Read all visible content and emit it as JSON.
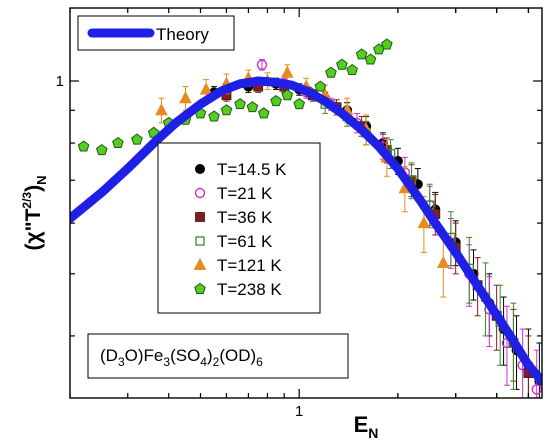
{
  "chart_data": {
    "type": "scatter",
    "x_scale": "log",
    "y_scale": "log",
    "xlim": [
      0.2,
      5.5
    ],
    "ylim": [
      0.32,
      1.3
    ],
    "x_ticks": [
      {
        "value": 1,
        "label": "1"
      }
    ],
    "y_ticks": [
      {
        "value": 1,
        "label": "1"
      }
    ],
    "xlabel": "E",
    "xlabel_sub": "N",
    "ylabel_parts": {
      "open": "(χ\"T",
      "sup": "2/3",
      "close": ")",
      "sub": "N"
    },
    "grid": false,
    "legend_placement": "center",
    "theory": {
      "name": "Theory",
      "color": "#1f1fe6",
      "x": [
        0.2,
        0.25,
        0.3,
        0.36,
        0.42,
        0.5,
        0.58,
        0.66,
        0.75,
        0.85,
        0.95,
        1.05,
        1.2,
        1.35,
        1.55,
        1.75,
        2.0,
        2.3,
        2.6,
        3.0,
        3.4,
        3.9,
        4.4,
        5.0,
        5.5
      ],
      "y": [
        0.61,
        0.67,
        0.73,
        0.8,
        0.86,
        0.92,
        0.965,
        0.99,
        1.0,
        0.995,
        0.985,
        0.965,
        0.93,
        0.89,
        0.84,
        0.79,
        0.73,
        0.66,
        0.6,
        0.54,
        0.49,
        0.44,
        0.4,
        0.36,
        0.34
      ]
    },
    "series": [
      {
        "name": "T=14.5 K",
        "marker": "filled-circle",
        "color": "#000000",
        "x": [
          0.55,
          0.7,
          0.85,
          1.0,
          1.2,
          1.4,
          1.6,
          1.8,
          2.0,
          2.3,
          2.6,
          3.0,
          3.4,
          3.8,
          4.2,
          4.6,
          5.0,
          5.4
        ],
        "y": [
          0.96,
          0.98,
          0.99,
          0.97,
          0.94,
          0.9,
          0.85,
          0.8,
          0.75,
          0.69,
          0.63,
          0.56,
          0.5,
          0.45,
          0.41,
          0.38,
          0.36,
          0.34
        ],
        "err": [
          0.02,
          0.02,
          0.02,
          0.02,
          0.02,
          0.025,
          0.03,
          0.03,
          0.035,
          0.04,
          0.04,
          0.045,
          0.045,
          0.05,
          0.05,
          0.05,
          0.05,
          0.05
        ]
      },
      {
        "name": "T=21 K",
        "marker": "open-circle",
        "color": "#cc33cc",
        "x": [
          0.77,
          0.9,
          1.05,
          1.25,
          1.5,
          1.8,
          2.1,
          2.5,
          2.9,
          3.3,
          3.8,
          4.3,
          4.8,
          5.3
        ],
        "y": [
          1.06,
          0.99,
          0.96,
          0.92,
          0.86,
          0.79,
          0.72,
          0.64,
          0.56,
          0.5,
          0.44,
          0.39,
          0.36,
          0.33
        ],
        "err": [
          0.02,
          0.02,
          0.02,
          0.02,
          0.03,
          0.035,
          0.04,
          0.045,
          0.05,
          0.055,
          0.055,
          0.055,
          0.05,
          0.05
        ]
      },
      {
        "name": "T=36 K",
        "marker": "filled-square",
        "color": "#8b1a1a",
        "x": [
          0.6,
          0.75,
          0.9,
          1.1,
          1.3,
          1.55,
          1.85,
          2.2,
          2.6,
          3.0,
          3.5,
          4.0,
          4.5,
          5.0
        ],
        "y": [
          0.95,
          0.98,
          0.98,
          0.95,
          0.91,
          0.85,
          0.78,
          0.7,
          0.62,
          0.55,
          0.48,
          0.43,
          0.39,
          0.35
        ],
        "err": [
          0.02,
          0.02,
          0.02,
          0.02,
          0.025,
          0.03,
          0.035,
          0.04,
          0.045,
          0.05,
          0.05,
          0.05,
          0.05,
          0.05
        ]
      },
      {
        "name": "T=61 K",
        "marker": "open-square",
        "color": "#3a8a2a",
        "x": [
          1.2,
          1.4,
          1.6,
          1.9,
          2.2,
          2.5,
          2.9,
          3.3,
          3.7,
          4.1,
          4.5
        ],
        "y": [
          0.92,
          0.88,
          0.83,
          0.77,
          0.7,
          0.64,
          0.57,
          0.51,
          0.46,
          0.42,
          0.39
        ],
        "err": [
          0.03,
          0.03,
          0.035,
          0.04,
          0.045,
          0.05,
          0.055,
          0.06,
          0.06,
          0.06,
          0.06
        ]
      },
      {
        "name": "T=121 K",
        "marker": "filled-triangle",
        "color": "#e98a1e",
        "x": [
          0.38,
          0.45,
          0.52,
          0.6,
          0.7,
          0.8,
          0.92,
          1.05,
          1.2,
          1.4,
          1.6,
          1.85,
          2.1,
          2.4,
          2.75
        ],
        "y": [
          0.9,
          0.94,
          0.97,
          0.99,
          1.01,
          1.0,
          1.03,
          0.98,
          0.95,
          0.9,
          0.84,
          0.76,
          0.68,
          0.6,
          0.52
        ],
        "err": [
          0.04,
          0.04,
          0.035,
          0.035,
          0.03,
          0.03,
          0.03,
          0.03,
          0.035,
          0.04,
          0.045,
          0.05,
          0.055,
          0.06,
          0.06
        ]
      },
      {
        "name": "T=238 K",
        "marker": "filled-pentagon",
        "color": "#55cc22",
        "x": [
          0.22,
          0.25,
          0.28,
          0.32,
          0.36,
          0.4,
          0.45,
          0.5,
          0.55,
          0.6,
          0.66,
          0.72,
          0.78,
          0.85,
          0.92,
          1.0,
          1.08,
          1.16,
          1.25,
          1.35,
          1.45,
          1.55,
          1.65,
          1.75,
          1.85
        ],
        "y": [
          0.79,
          0.78,
          0.8,
          0.81,
          0.83,
          0.86,
          0.87,
          0.89,
          0.88,
          0.9,
          0.92,
          0.91,
          0.89,
          0.93,
          0.95,
          0.92,
          0.96,
          0.98,
          1.03,
          1.06,
          1.04,
          1.1,
          1.08,
          1.12,
          1.14
        ],
        "err": []
      }
    ],
    "annotation": {
      "parts": [
        {
          "t": "(D",
          "sub": false
        },
        {
          "t": "3",
          "sub": true
        },
        {
          "t": "O)Fe",
          "sub": false
        },
        {
          "t": "3",
          "sub": true
        },
        {
          "t": "(SO",
          "sub": false
        },
        {
          "t": "4",
          "sub": true
        },
        {
          "t": ")",
          "sub": false
        },
        {
          "t": "2",
          "sub": true
        },
        {
          "t": "(OD)",
          "sub": false
        },
        {
          "t": "6",
          "sub": true
        }
      ]
    }
  }
}
